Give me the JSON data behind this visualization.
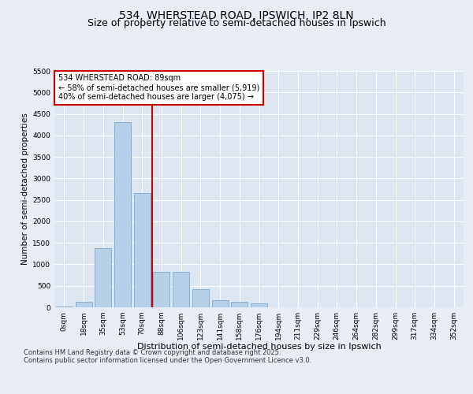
{
  "title": "534, WHERSTEAD ROAD, IPSWICH, IP2 8LN",
  "subtitle": "Size of property relative to semi-detached houses in Ipswich",
  "xlabel": "Distribution of semi-detached houses by size in Ipswich",
  "ylabel": "Number of semi-detached properties",
  "bar_labels": [
    "0sqm",
    "18sqm",
    "35sqm",
    "53sqm",
    "70sqm",
    "88sqm",
    "106sqm",
    "123sqm",
    "141sqm",
    "158sqm",
    "176sqm",
    "194sqm",
    "211sqm",
    "229sqm",
    "246sqm",
    "264sqm",
    "282sqm",
    "299sqm",
    "317sqm",
    "334sqm",
    "352sqm"
  ],
  "bar_values": [
    10,
    130,
    1380,
    4300,
    2650,
    820,
    820,
    420,
    170,
    120,
    90,
    0,
    0,
    0,
    0,
    0,
    0,
    0,
    0,
    0,
    0
  ],
  "bar_color": "#b8cfe8",
  "bar_edge_color": "#7aaad0",
  "vline_color": "#cc0000",
  "annotation_box_text": "534 WHERSTEAD ROAD: 89sqm\n← 58% of semi-detached houses are smaller (5,919)\n40% of semi-detached houses are larger (4,075) →",
  "annotation_box_color": "#cc0000",
  "annotation_box_bg": "#ffffff",
  "ylim": [
    0,
    5500
  ],
  "yticks": [
    0,
    500,
    1000,
    1500,
    2000,
    2500,
    3000,
    3500,
    4000,
    4500,
    5000,
    5500
  ],
  "bg_color": "#e8ecf4",
  "plot_bg_color": "#dde5f0",
  "footer_text": "Contains HM Land Registry data © Crown copyright and database right 2025.\nContains public sector information licensed under the Open Government Licence v3.0.",
  "title_fontsize": 10,
  "subtitle_fontsize": 9,
  "xlabel_fontsize": 8,
  "ylabel_fontsize": 7.5,
  "tick_fontsize": 6.5,
  "annotation_fontsize": 7,
  "footer_fontsize": 6
}
